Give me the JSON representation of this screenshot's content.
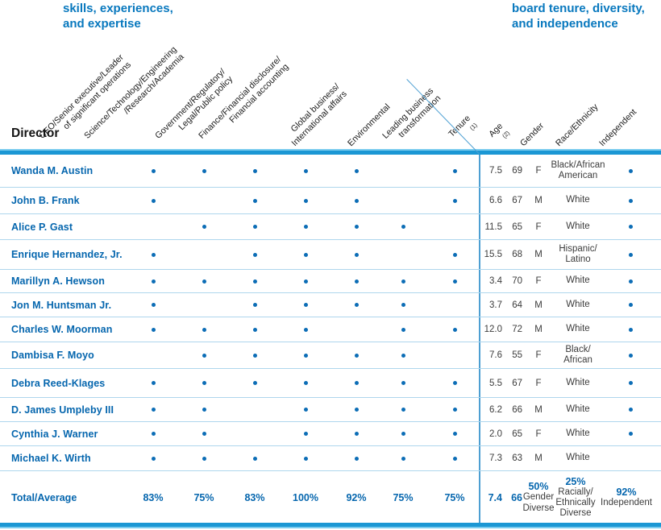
{
  "page": {
    "left_heading": {
      "line1": "skills, experiences,",
      "line2": "and expertise"
    },
    "right_heading": {
      "line1": "board tenure, diversity,",
      "line2": "and independence"
    },
    "director_label": "Director"
  },
  "colors": {
    "heading_blue": "#0878BE",
    "name_blue": "#0566AE",
    "rule_blue": "#1B97D4",
    "row_divider_blue": "#AED6ED",
    "dot_blue": "#0C6DB6",
    "separator_line_blue": "#4D9FD2",
    "body_text": "#3C3C3C"
  },
  "skills": [
    {
      "line1": "CEO/Senior executive/Leader",
      "line2": "of significant operations"
    },
    {
      "line1": "Science/Technology/Engineering",
      "line2": "/Research/Academia"
    },
    {
      "line1": "Government/Regulatory/",
      "line2": "Legal/Public policy"
    },
    {
      "line1": "Finance/Financial disclosure/",
      "line2": "Financial accounting"
    },
    {
      "line1": "Global business/",
      "line2": "International affairs"
    },
    {
      "line1": "Environmental",
      "line2": ""
    },
    {
      "line1": "Leading business",
      "line2": "transformation"
    }
  ],
  "info_headers": [
    {
      "label": "Tenure",
      "sup": "(1)"
    },
    {
      "label": "Age",
      "sup": "(2)"
    },
    {
      "label": "Gender",
      "sup": ""
    },
    {
      "label": "Race/Ethnicity",
      "sup": ""
    },
    {
      "label": "Independent",
      "sup": ""
    }
  ],
  "directors": [
    {
      "name": "Wanda M. Austin",
      "skills": [
        1,
        1,
        1,
        1,
        1,
        0,
        1
      ],
      "tenure": "7.5",
      "age": "69",
      "gender": "F",
      "race": "Black/African\nAmerican",
      "independent": true
    },
    {
      "name": "John B. Frank",
      "skills": [
        1,
        0,
        1,
        1,
        1,
        0,
        1
      ],
      "tenure": "6.6",
      "age": "67",
      "gender": "M",
      "race": "White",
      "independent": true
    },
    {
      "name": "Alice P. Gast",
      "skills": [
        0,
        1,
        1,
        1,
        1,
        1,
        0
      ],
      "tenure": "11.5",
      "age": "65",
      "gender": "F",
      "race": "White",
      "independent": true
    },
    {
      "name": "Enrique Hernandez, Jr.",
      "skills": [
        1,
        0,
        1,
        1,
        1,
        0,
        1
      ],
      "tenure": "15.5",
      "age": "68",
      "gender": "M",
      "race": "Hispanic/\nLatino",
      "independent": true
    },
    {
      "name": "Marillyn A. Hewson",
      "skills": [
        1,
        1,
        1,
        1,
        1,
        1,
        1
      ],
      "tenure": "3.4",
      "age": "70",
      "gender": "F",
      "race": "White",
      "independent": true
    },
    {
      "name": "Jon M. Huntsman Jr.",
      "skills": [
        1,
        0,
        1,
        1,
        1,
        1,
        0
      ],
      "tenure": "3.7",
      "age": "64",
      "gender": "M",
      "race": "White",
      "independent": true
    },
    {
      "name": "Charles W. Moorman",
      "skills": [
        1,
        1,
        1,
        1,
        0,
        1,
        1
      ],
      "tenure": "12.0",
      "age": "72",
      "gender": "M",
      "race": "White",
      "independent": true
    },
    {
      "name": "Dambisa F. Moyo",
      "skills": [
        0,
        1,
        1,
        1,
        1,
        1,
        0
      ],
      "tenure": "7.6",
      "age": "55",
      "gender": "F",
      "race": "Black/\nAfrican",
      "independent": true
    },
    {
      "name": "Debra Reed-Klages",
      "skills": [
        1,
        1,
        1,
        1,
        1,
        1,
        1
      ],
      "tenure": "5.5",
      "age": "67",
      "gender": "F",
      "race": "White",
      "independent": true
    },
    {
      "name": "D. James Umpleby III",
      "skills": [
        1,
        1,
        0,
        1,
        1,
        1,
        1
      ],
      "tenure": "6.2",
      "age": "66",
      "gender": "M",
      "race": "White",
      "independent": true
    },
    {
      "name": "Cynthia J. Warner",
      "skills": [
        1,
        1,
        0,
        1,
        1,
        1,
        1
      ],
      "tenure": "2.0",
      "age": "65",
      "gender": "F",
      "race": "White",
      "independent": true
    },
    {
      "name": "Michael K. Wirth",
      "skills": [
        1,
        1,
        1,
        1,
        1,
        1,
        1
      ],
      "tenure": "7.3",
      "age": "63",
      "gender": "M",
      "race": "White",
      "independent": false
    }
  ],
  "totals": {
    "label": "Total/Average",
    "skill_percents": [
      "83%",
      "75%",
      "83%",
      "100%",
      "92%",
      "75%",
      "75%"
    ],
    "tenure": "7.4",
    "age": "66",
    "gender": {
      "value": "50%",
      "label": "Gender\nDiverse"
    },
    "race": {
      "value": "25%",
      "label": "Racially/\nEthnically\nDiverse"
    },
    "independent": {
      "value": "92%",
      "label": "Independent"
    }
  }
}
